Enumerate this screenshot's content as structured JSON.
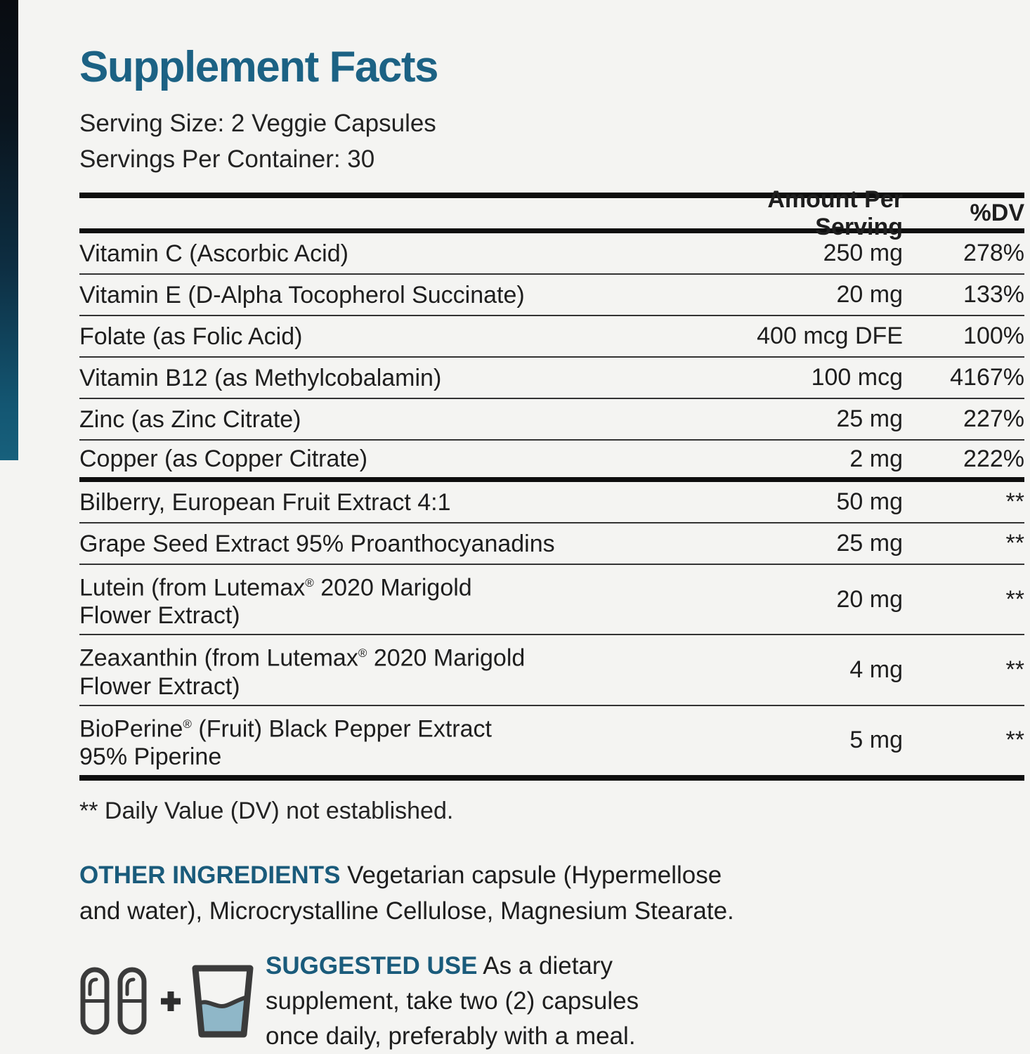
{
  "colors": {
    "background": "#f4f4f2",
    "title_teal": "#1c6284",
    "label_teal": "#1a5b7b",
    "water_blue": "#8fb7c8",
    "icon_gray": "#3b3b3b",
    "sidebar_gradient_top": "#090c11",
    "sidebar_gradient_bottom": "#17607c"
  },
  "panel": {
    "title": "Supplement Facts",
    "serving_size": "Serving Size: 2 Veggie Capsules",
    "servings_per_container": "Servings Per Container: 30"
  },
  "table": {
    "header": {
      "amount": "Amount Per Serving",
      "dv": "%DV"
    },
    "rows": [
      {
        "name": "Vitamin C (Ascorbic Acid)",
        "amount": "250 mg",
        "dv": "278%"
      },
      {
        "name": "Vitamin E (D-Alpha Tocopherol Succinate)",
        "amount": "20 mg",
        "dv": "133%"
      },
      {
        "name": "Folate (as Folic Acid)",
        "amount": "400 mcg DFE",
        "dv": "100%"
      },
      {
        "name": "Vitamin B12 (as Methylcobalamin)",
        "amount": "100 mcg",
        "dv": "4167%"
      },
      {
        "name": "Zinc (as Zinc Citrate)",
        "amount": "25 mg",
        "dv": "227%"
      },
      {
        "name": "Copper (as Copper Citrate)",
        "amount": "2 mg",
        "dv": "222%",
        "thick_divider_after": true
      },
      {
        "name": "Bilberry, European Fruit Extract 4:1",
        "amount": "50 mg",
        "dv": "**"
      },
      {
        "name": "Grape Seed Extract 95% Proanthocyanadins",
        "amount": "25 mg",
        "dv": "**"
      },
      {
        "name": "Lutein (from Lutemax® 2020 Marigold\nFlower Extract)",
        "amount": "20 mg",
        "dv": "**"
      },
      {
        "name": "Zeaxanthin (from Lutemax® 2020 Marigold\nFlower Extract)",
        "amount": "4 mg",
        "dv": "**"
      },
      {
        "name": "BioPerine® (Fruit) Black Pepper Extract\n95% Piperine",
        "amount": "5 mg",
        "dv": "**"
      }
    ],
    "footnote": "** Daily Value (DV) not established."
  },
  "other_ingredients": {
    "label": "OTHER INGREDIENTS",
    "text": " Vegetarian capsule (Hypermellose\nand water), Microcrystalline Cellulose, Magnesium Stearate."
  },
  "suggested_use": {
    "label": "SUGGESTED USE",
    "text": " As a dietary\nsupplement, take two (2) capsules\nonce daily, preferably with a meal.",
    "icons": [
      "capsule-icon",
      "capsule-icon",
      "plus-icon",
      "water-glass-icon"
    ]
  }
}
